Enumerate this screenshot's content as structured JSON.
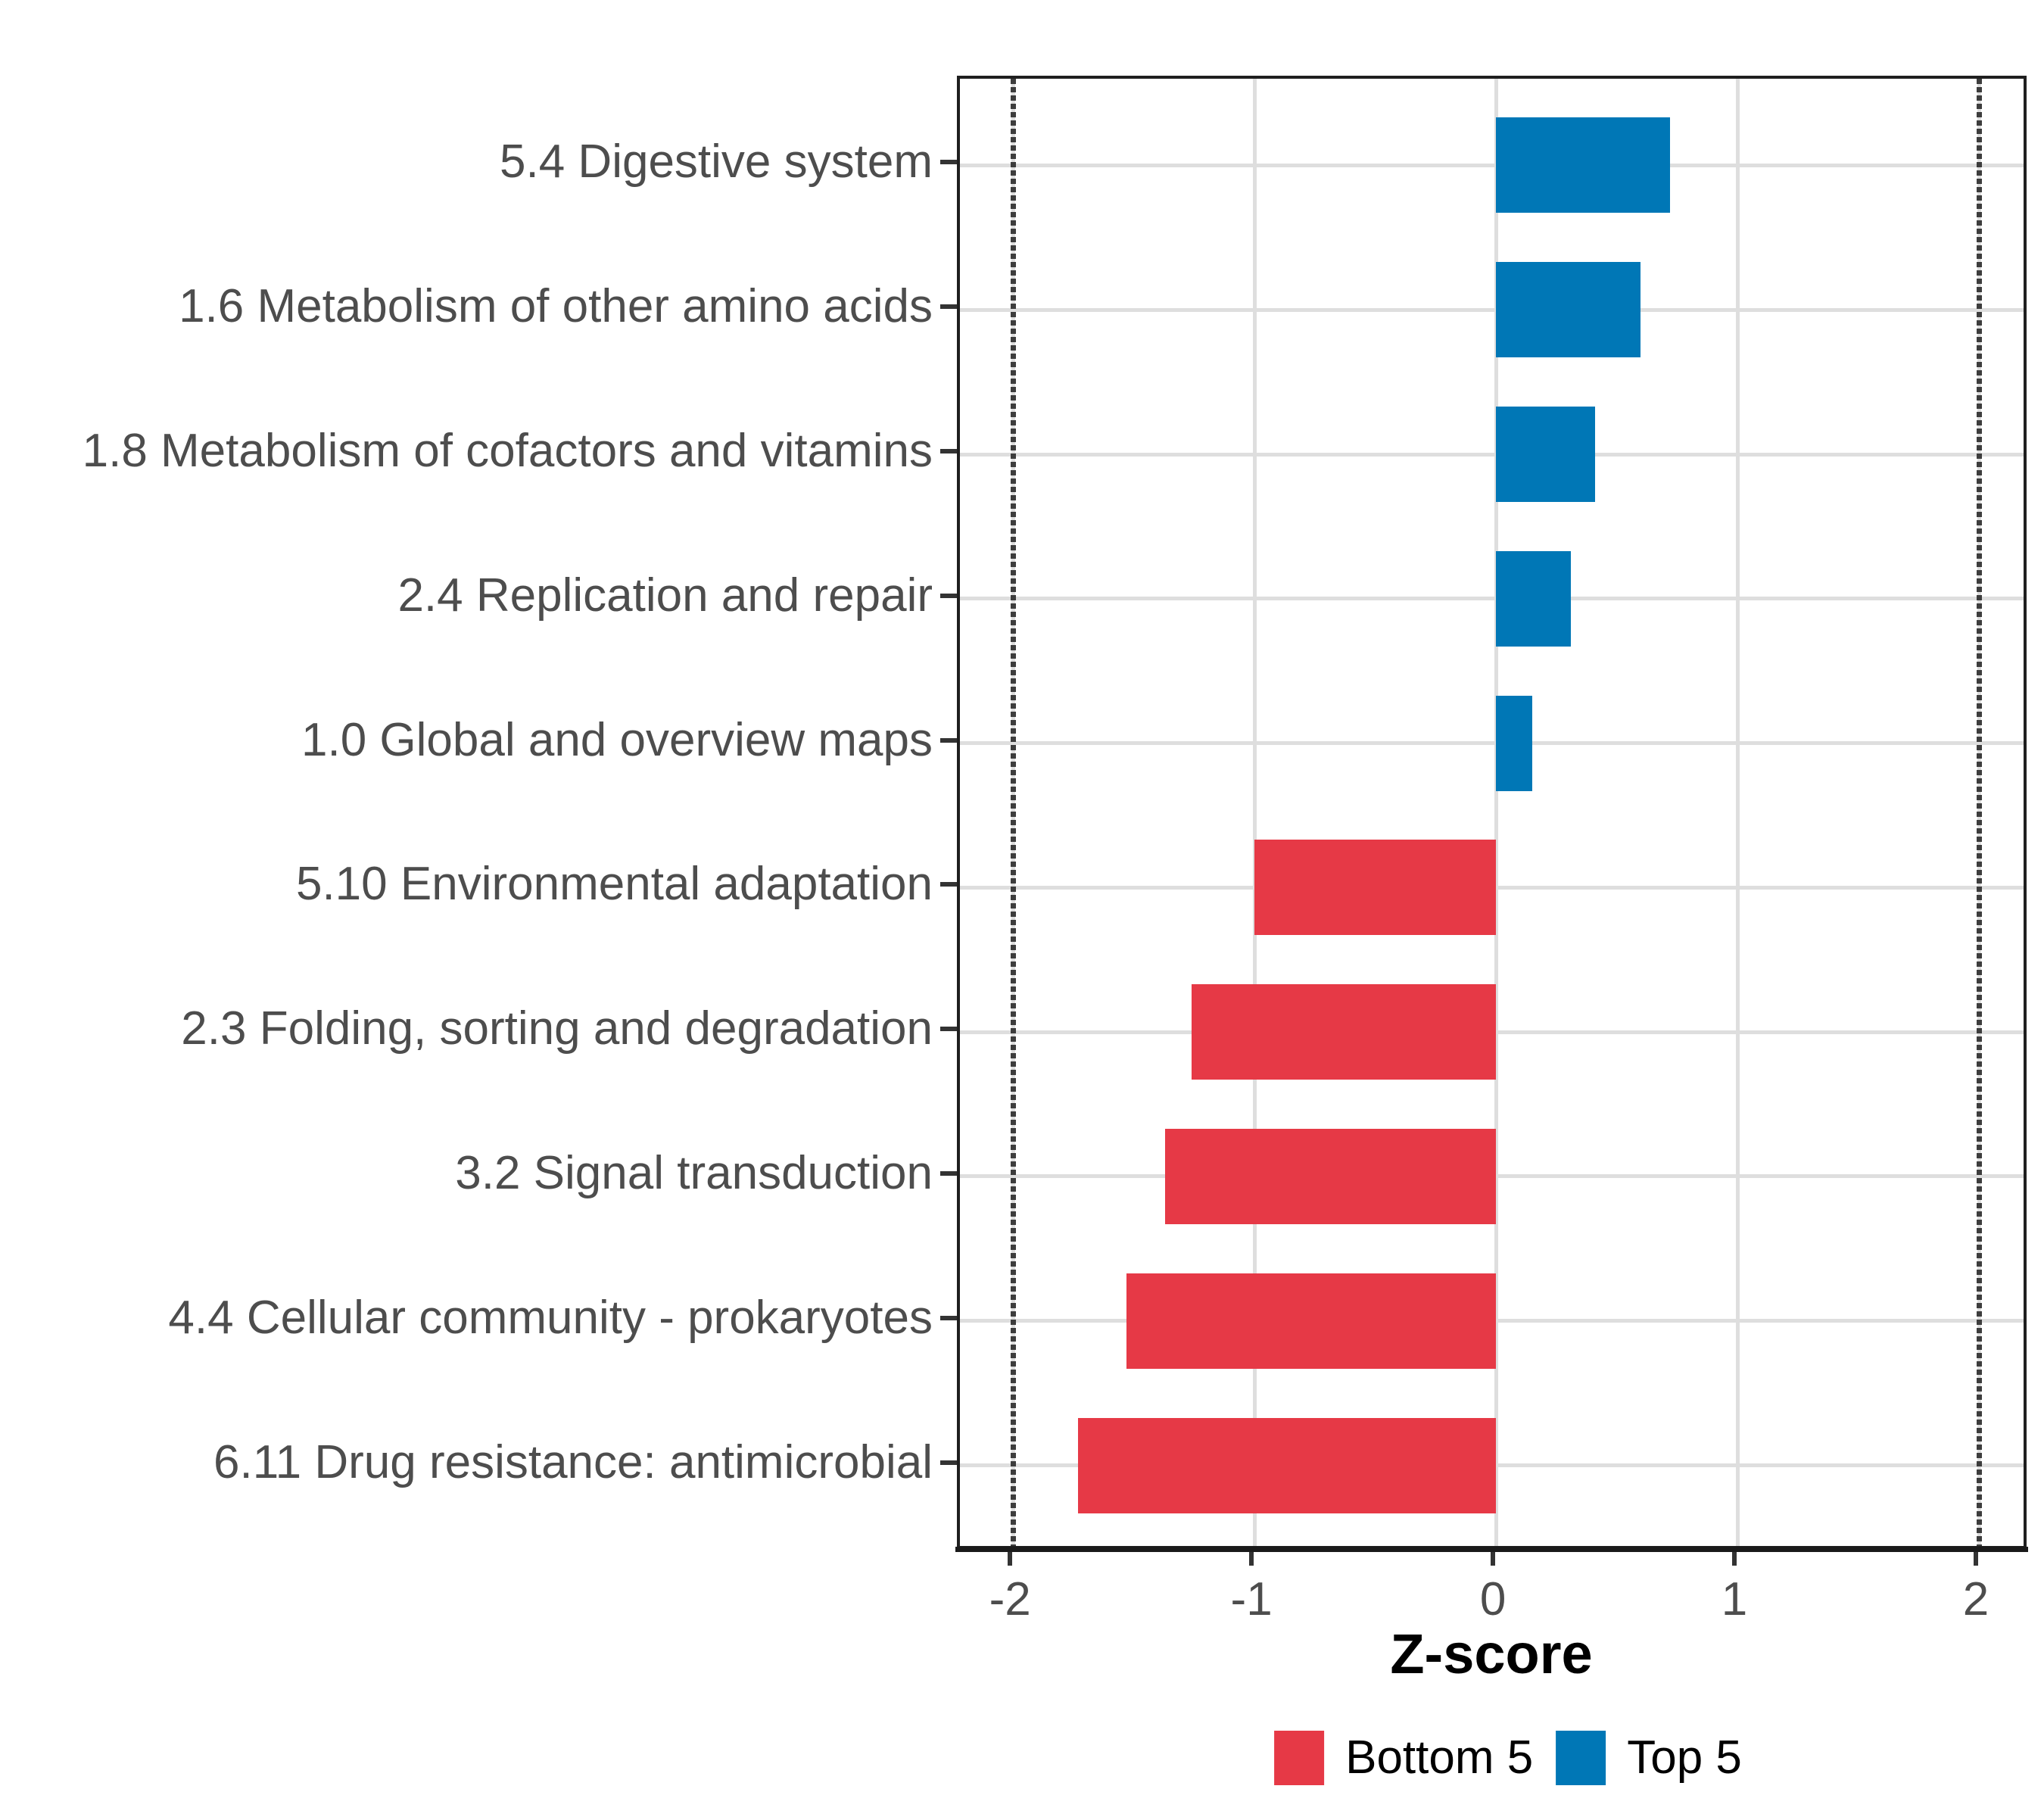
{
  "chart_data": {
    "type": "bar",
    "orientation": "horizontal",
    "xlabel": "Z-score",
    "xlim": [
      -2.22,
      2.21
    ],
    "x_ticks": [
      -2,
      -1,
      0,
      1,
      2
    ],
    "x_tick_labels": [
      "-2",
      "-1",
      "0",
      "1",
      "2"
    ],
    "reference_lines": [
      -2,
      2
    ],
    "grid": {
      "major_x": true,
      "major_y": true,
      "minor": false,
      "color": "#dedede"
    },
    "legend_position": "bottom",
    "bars": [
      {
        "category": "5.4 Digestive system",
        "value": 0.72,
        "group": "Top 5"
      },
      {
        "category": "1.6 Metabolism of other amino acids",
        "value": 0.6,
        "group": "Top 5"
      },
      {
        "category": "1.8 Metabolism of cofactors and vitamins",
        "value": 0.41,
        "group": "Top 5"
      },
      {
        "category": "2.4 Replication and repair",
        "value": 0.31,
        "group": "Top 5"
      },
      {
        "category": "1.0 Global and overview maps",
        "value": 0.15,
        "group": "Top 5"
      },
      {
        "category": "5.10 Environmental adaptation",
        "value": -1.0,
        "group": "Bottom 5"
      },
      {
        "category": "2.3 Folding, sorting and degradation",
        "value": -1.26,
        "group": "Bottom 5"
      },
      {
        "category": "3.2 Signal transduction",
        "value": -1.37,
        "group": "Bottom 5"
      },
      {
        "category": "4.4 Cellular community - prokaryotes",
        "value": -1.53,
        "group": "Bottom 5"
      },
      {
        "category": "6.11 Drug resistance: antimicrobial",
        "value": -1.73,
        "group": "Bottom 5"
      }
    ],
    "legend": {
      "items": [
        {
          "label": "Bottom 5",
          "color": "#E63946"
        },
        {
          "label": "Top 5",
          "color": "#0077B6"
        }
      ]
    }
  }
}
